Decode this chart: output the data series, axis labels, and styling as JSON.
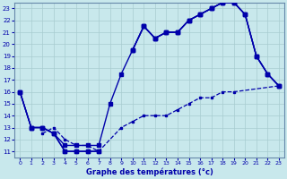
{
  "xlabel": "Graphe des températures (°c)",
  "x_ticks": [
    0,
    1,
    2,
    3,
    4,
    5,
    6,
    7,
    8,
    9,
    10,
    11,
    12,
    13,
    14,
    15,
    16,
    17,
    18,
    19,
    20,
    21,
    22,
    23
  ],
  "y_ticks": [
    11,
    12,
    13,
    14,
    15,
    16,
    17,
    18,
    19,
    20,
    21,
    22,
    23
  ],
  "xlim": [
    -0.5,
    23.5
  ],
  "ylim": [
    10.5,
    23.5
  ],
  "bg_color": "#c8e8ec",
  "grid_color": "#a8ccd0",
  "line_color": "#0000aa",
  "curve1_x": [
    0,
    1,
    2,
    3,
    4,
    5,
    6,
    7,
    8,
    9,
    10,
    11,
    12,
    13,
    14,
    15,
    16,
    17,
    18,
    19,
    20,
    21,
    22,
    23
  ],
  "curve1_y": [
    16,
    13,
    13,
    12.5,
    11.5,
    11.5,
    11.5,
    11.5,
    15,
    17.5,
    19.5,
    21.5,
    20.5,
    21,
    21,
    22,
    22.5,
    23,
    23.5,
    23.5,
    22.5,
    19,
    17.5,
    16.5
  ],
  "curve2_x": [
    0,
    1,
    2,
    3,
    4,
    5,
    6,
    7,
    8,
    9,
    10,
    11,
    12,
    13,
    14,
    15,
    16,
    17,
    18,
    19,
    20,
    21,
    22,
    23
  ],
  "curve2_y": [
    16,
    13,
    13,
    12.5,
    11,
    11,
    11,
    11,
    null,
    null,
    19.5,
    21.5,
    20.5,
    21,
    21,
    22,
    22.5,
    23,
    23.5,
    23.5,
    22.5,
    19,
    17.5,
    16.5
  ],
  "curve3_x": [
    0,
    1,
    2,
    3,
    4,
    5,
    6,
    7,
    8,
    9,
    10,
    11,
    12,
    13,
    14,
    15,
    16,
    17,
    18,
    19,
    20,
    21,
    22,
    23
  ],
  "curve3_y": [
    16,
    13,
    13,
    12.5,
    11,
    11,
    11,
    11,
    null,
    null,
    19.5,
    21.5,
    20.5,
    21,
    21,
    22,
    22.5,
    23,
    23.5,
    23.5,
    22.5,
    19,
    17.5,
    16.5
  ],
  "dashed_x": [
    2,
    3,
    4,
    5,
    6,
    7,
    9,
    10,
    11,
    12,
    13,
    14,
    15,
    16,
    17,
    18,
    19,
    23
  ],
  "dashed_y": [
    12.5,
    13,
    12,
    11.5,
    11.5,
    11,
    13,
    13.5,
    14,
    14,
    14,
    14.5,
    15,
    15.5,
    15.5,
    16,
    16,
    16.5
  ]
}
